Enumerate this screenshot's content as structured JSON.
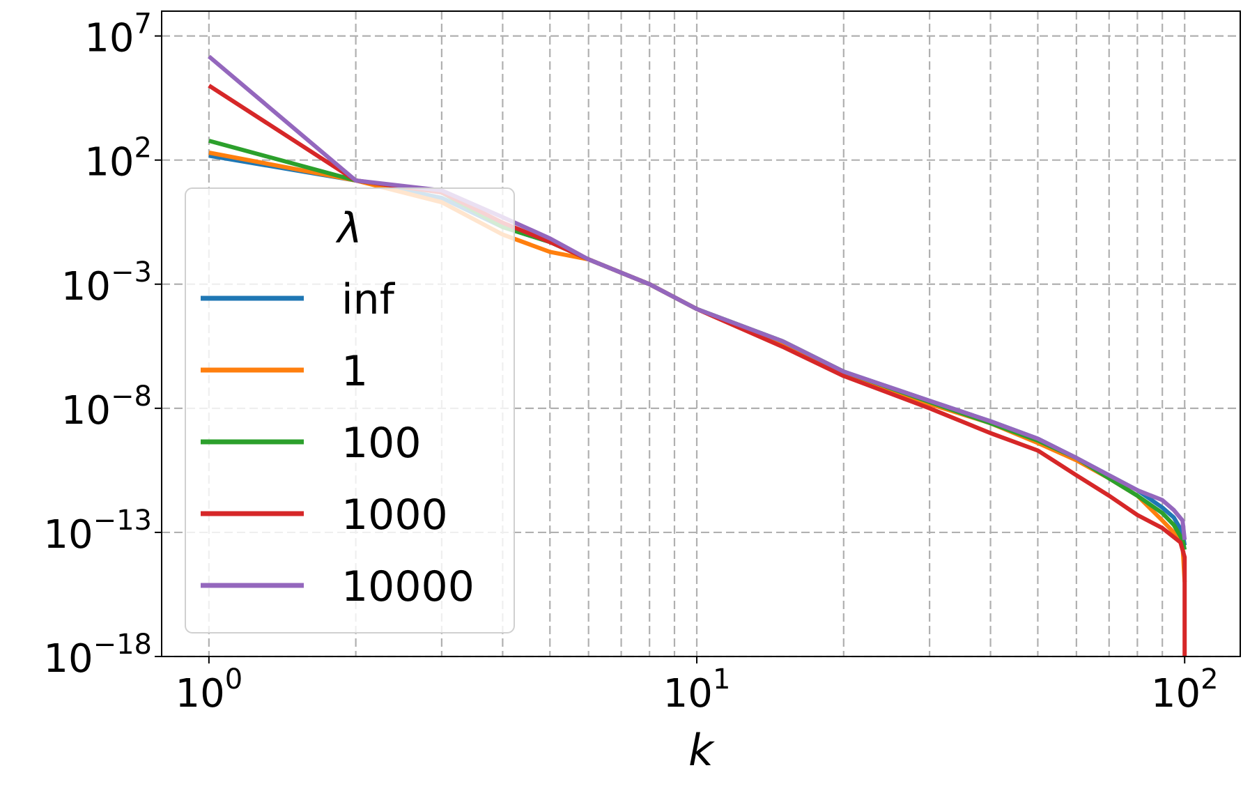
{
  "chart_data": {
    "type": "line",
    "xlabel": "k",
    "ylabel": "",
    "title": "",
    "xscale": "log",
    "yscale": "log",
    "xlim": [
      0.8,
      130
    ],
    "ylim": [
      1e-18,
      100000000.0
    ],
    "grid": true,
    "grid_style": "dashed",
    "x_ticks": [
      {
        "value": 1,
        "base": "10",
        "exp": "0"
      },
      {
        "value": 10,
        "base": "10",
        "exp": "1"
      },
      {
        "value": 100,
        "base": "10",
        "exp": "2"
      }
    ],
    "y_ticks": [
      {
        "value": 10000000.0,
        "base": "10",
        "exp": "7"
      },
      {
        "value": 100.0,
        "base": "10",
        "exp": "2"
      },
      {
        "value": 0.001,
        "base": "10",
        "exp": "−3"
      },
      {
        "value": 1e-08,
        "base": "10",
        "exp": "−8"
      },
      {
        "value": 1e-13,
        "base": "10",
        "exp": "−13"
      },
      {
        "value": 1e-18,
        "base": "10",
        "exp": "−18"
      }
    ],
    "legend": {
      "title": "λ",
      "placement": "center-left"
    },
    "series": [
      {
        "name": "inf",
        "color": "#1f77b4",
        "points": [
          [
            1,
            150.0
          ],
          [
            2,
            15.0
          ],
          [
            3,
            3.0
          ],
          [
            4,
            0.2
          ],
          [
            5,
            0.05
          ],
          [
            6,
            0.01
          ],
          [
            8,
            0.001
          ],
          [
            10,
            0.0001
          ],
          [
            15,
            5e-06
          ],
          [
            20,
            3e-07
          ],
          [
            30,
            2e-08
          ],
          [
            40,
            3e-09
          ],
          [
            50,
            6e-10
          ],
          [
            60,
            1e-10
          ],
          [
            70,
            2e-11
          ],
          [
            80,
            5e-12
          ],
          [
            90,
            1e-12
          ],
          [
            95,
            4e-13
          ],
          [
            99,
            1e-13
          ],
          [
            100,
            3e-14
          ]
        ]
      },
      {
        "name": "1",
        "color": "#ff7f0e",
        "points": [
          [
            1,
            200.0
          ],
          [
            2,
            15.0
          ],
          [
            3,
            2.0
          ],
          [
            4,
            0.1
          ],
          [
            5,
            0.02
          ],
          [
            6,
            0.01
          ],
          [
            8,
            0.001
          ],
          [
            10,
            0.0001
          ],
          [
            15,
            4e-06
          ],
          [
            20,
            2.5e-07
          ],
          [
            30,
            1.5e-08
          ],
          [
            40,
            2.5e-09
          ],
          [
            50,
            4e-10
          ],
          [
            60,
            8e-11
          ],
          [
            70,
            1.5e-11
          ],
          [
            80,
            3e-12
          ],
          [
            90,
            3e-13
          ],
          [
            95,
            1e-13
          ],
          [
            99,
            3e-14
          ],
          [
            100,
            1e-15
          ]
        ]
      },
      {
        "name": "100",
        "color": "#2ca02c",
        "points": [
          [
            1,
            600.0
          ],
          [
            2,
            15.0
          ],
          [
            3,
            5.0
          ],
          [
            4,
            0.2
          ],
          [
            5,
            0.05
          ],
          [
            6,
            0.01
          ],
          [
            8,
            0.001
          ],
          [
            10,
            0.0001
          ],
          [
            15,
            5e-06
          ],
          [
            20,
            3e-07
          ],
          [
            30,
            1.8e-08
          ],
          [
            40,
            2.5e-09
          ],
          [
            50,
            5e-10
          ],
          [
            60,
            1e-10
          ],
          [
            70,
            1.5e-11
          ],
          [
            80,
            3e-12
          ],
          [
            90,
            6e-13
          ],
          [
            95,
            2e-13
          ],
          [
            99,
            5e-14
          ],
          [
            100,
            2e-14
          ]
        ]
      },
      {
        "name": "1000",
        "color": "#d62728",
        "points": [
          [
            1,
            100000.0
          ],
          [
            2,
            15.0
          ],
          [
            3,
            5.0
          ],
          [
            4,
            0.3
          ],
          [
            5,
            0.05
          ],
          [
            6,
            0.01
          ],
          [
            8,
            0.001
          ],
          [
            10,
            0.0001
          ],
          [
            15,
            3e-06
          ],
          [
            20,
            2e-07
          ],
          [
            30,
            1e-08
          ],
          [
            40,
            1e-09
          ],
          [
            50,
            2e-10
          ],
          [
            60,
            2e-11
          ],
          [
            70,
            3e-12
          ],
          [
            80,
            5e-13
          ],
          [
            90,
            1.5e-13
          ],
          [
            98,
            4e-14
          ],
          [
            100,
            1e-14
          ],
          [
            100,
            1e-18
          ]
        ]
      },
      {
        "name": "10000",
        "color": "#9467bd",
        "points": [
          [
            1,
            1500000.0
          ],
          [
            2,
            15.0
          ],
          [
            3,
            6.0
          ],
          [
            4,
            0.5
          ],
          [
            5,
            0.07
          ],
          [
            6,
            0.01
          ],
          [
            8,
            0.001
          ],
          [
            10,
            0.0001
          ],
          [
            15,
            5e-06
          ],
          [
            20,
            3e-07
          ],
          [
            30,
            2e-08
          ],
          [
            40,
            3e-09
          ],
          [
            50,
            6e-10
          ],
          [
            60,
            1e-10
          ],
          [
            70,
            2e-11
          ],
          [
            80,
            5e-12
          ],
          [
            90,
            2e-12
          ],
          [
            95,
            8e-13
          ],
          [
            99,
            3e-13
          ],
          [
            100,
            5e-14
          ]
        ]
      }
    ]
  }
}
